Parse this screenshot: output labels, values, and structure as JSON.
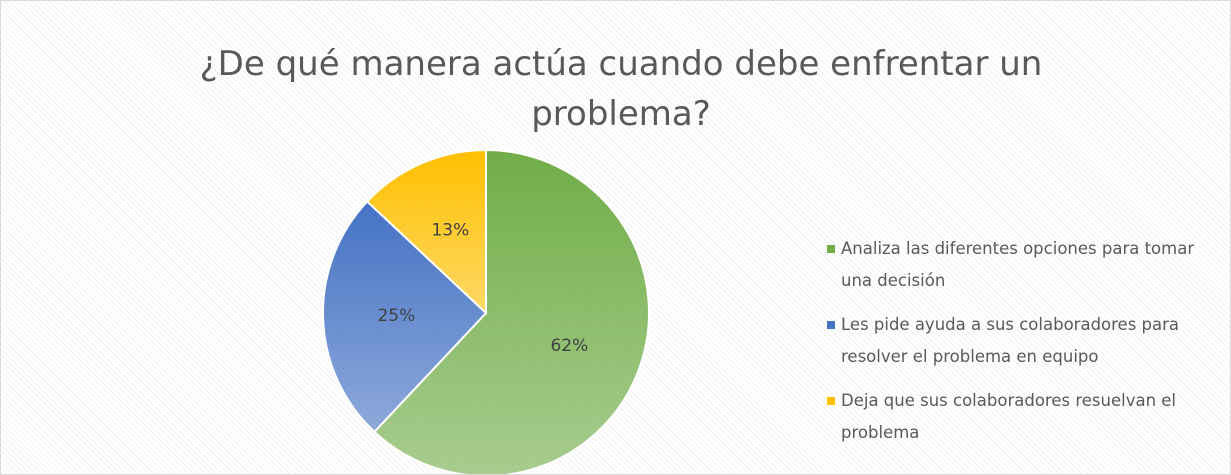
{
  "chart_data": {
    "type": "pie",
    "title": "¿De qué manera actúa cuando debe enfrentar un problema?",
    "categories": [
      "Analiza las diferentes opciones para tomar una decisión",
      "Les pide ayuda a sus colaboradores para resolver el problema en equipo",
      "Deja que sus colaboradores resuelvan el problema"
    ],
    "values": [
      62,
      25,
      13
    ],
    "value_labels": [
      "62%",
      "25%",
      "13%"
    ],
    "colors": [
      "#70ad47",
      "#4472c4",
      "#ffc000"
    ],
    "legend": "right"
  }
}
